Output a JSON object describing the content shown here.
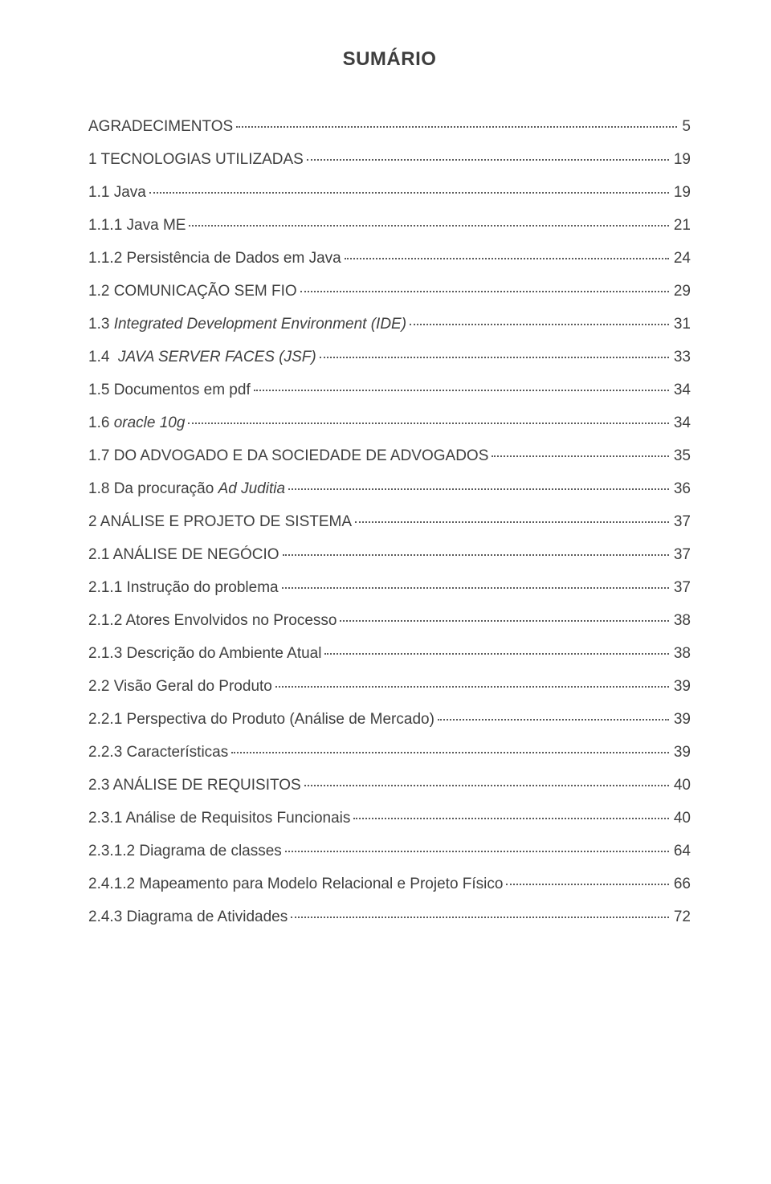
{
  "title": "SUMÁRIO",
  "entries": [
    {
      "label": "AGRADECIMENTOS",
      "page": "5",
      "section": true
    },
    {
      "label": "1 TECNOLOGIAS UTILIZADAS",
      "page": "19",
      "section": true
    },
    {
      "label": "1.1 Java",
      "page": "19"
    },
    {
      "label": "1.1.1 Java ME",
      "page": "21"
    },
    {
      "label": "1.1.2 Persistência de Dados em Java",
      "page": "24"
    },
    {
      "label": "1.2 COMUNICAÇÃO SEM FIO",
      "page": "29"
    },
    {
      "label_prefix": "1.3 ",
      "label_italic": "Integrated Development Environment (IDE)",
      "page": "31"
    },
    {
      "label_prefix": "1.4  ",
      "label_italic": "JAVA SERVER FACES (JSF)",
      "page": "33"
    },
    {
      "label": "1.5 Documentos em pdf",
      "page": "34"
    },
    {
      "label_prefix": "1.6 ",
      "label_italic": "oracle 10g",
      "page": "34"
    },
    {
      "label": "1.7 DO ADVOGADO E DA SOCIEDADE DE ADVOGADOS",
      "page": "35"
    },
    {
      "label_prefix": "1.8 Da procuração ",
      "label_italic": "Ad Juditia",
      "page": "36"
    },
    {
      "label": "2 ANÁLISE E PROJETO DE SISTEMA",
      "page": "37",
      "section": true
    },
    {
      "label": "2.1 ANÁLISE DE NEGÓCIO",
      "page": "37"
    },
    {
      "label": "2.1.1 Instrução do problema",
      "page": "37"
    },
    {
      "label": "2.1.2 Atores Envolvidos no Processo",
      "page": "38"
    },
    {
      "label": "2.1.3 Descrição do Ambiente Atual",
      "page": "38"
    },
    {
      "label": "2.2 Visão Geral do Produto",
      "page": "39",
      "section": true
    },
    {
      "label": "2.2.1 Perspectiva do Produto (Análise de Mercado)",
      "page": "39"
    },
    {
      "label": "2.2.3 Características",
      "page": "39"
    },
    {
      "label": "2.3 ANÁLISE DE REQUISITOS",
      "page": "40"
    },
    {
      "label": "2.3.1 Análise de Requisitos Funcionais",
      "page": "40"
    },
    {
      "label": "2.3.1.2 Diagrama de classes",
      "page": "64"
    },
    {
      "label": "2.4.1.2 Mapeamento para Modelo Relacional e Projeto Físico",
      "page": "66"
    },
    {
      "label": "2.4.3 Diagrama de Atividades",
      "page": "72"
    }
  ]
}
